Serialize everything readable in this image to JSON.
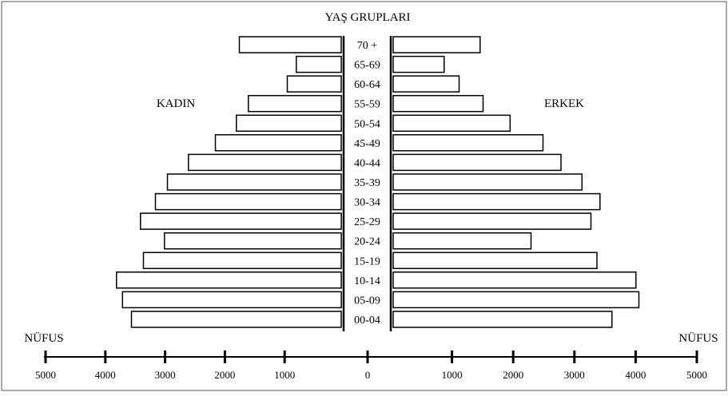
{
  "chart_data": {
    "type": "bar",
    "subtype": "population-pyramid",
    "title": "YAŞ GRUPLARI",
    "left_label": "KADIN",
    "right_label": "ERKEK",
    "axis_title_left": "NÜFUS",
    "axis_title_right": "NÜFUS",
    "categories": [
      "70 +",
      "65-69",
      "60-64",
      "55-59",
      "50-54",
      "45-49",
      "40-44",
      "35-39",
      "30-34",
      "25-29",
      "20-24",
      "15-19",
      "10-14",
      "05-09",
      "00-04"
    ],
    "series": [
      {
        "name": "KADIN",
        "side": "left",
        "values": [
          1700,
          750,
          900,
          1550,
          1750,
          2100,
          2550,
          2900,
          3100,
          3350,
          2950,
          3300,
          3750,
          3650,
          3500
        ]
      },
      {
        "name": "ERKEK",
        "side": "right",
        "values": [
          1450,
          850,
          1100,
          1500,
          1950,
          2500,
          2800,
          3150,
          3450,
          3300,
          2300,
          3400,
          4050,
          4100,
          3650
        ]
      }
    ],
    "x_ticks_left": [
      "5000",
      "4000",
      "3000",
      "2000",
      "1000"
    ],
    "x_tick_center": "0",
    "x_ticks_right": [
      "1000",
      "2000",
      "3000",
      "4000",
      "5000"
    ],
    "xlim": [
      0,
      5000
    ]
  }
}
